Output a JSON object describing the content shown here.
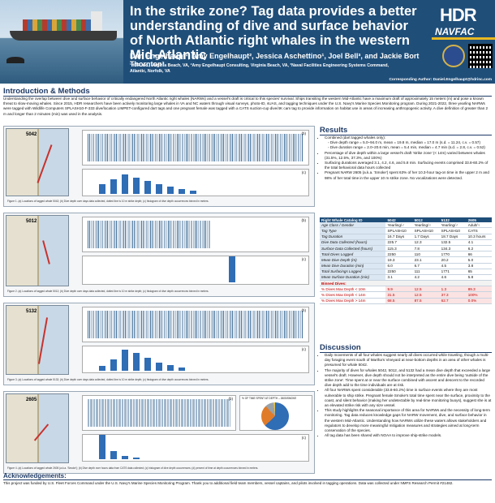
{
  "header": {
    "title": "In the strike zone? Tag data provides a better understanding of dive and surface behavior of North Atlantic right whales in the western Mid-Atlantic",
    "authors": "Dan Engelhaupt¹, Amy Engelhaupt², Jessica Aschettino¹, Joel Bell³, and Jackie Bort Thornton³",
    "affiliations": "¹HDR Inc., Virginia Beach, VA, ²Amy Engelhaupt Consulting, Virginia Beach, VA, ³Naval Facilities Engineering Systems Command, Atlantic, Norfolk, VA",
    "contact": "Corresponding Author: Daniel.Engelhaupt@hdrinc.com",
    "logo_hdr": "HDR",
    "logo_navfac": "NAVFAC"
  },
  "intro": {
    "heading": "Introduction & Methods",
    "text": "Understanding the overlap between dive and surface behavior of critically endangered North Atlantic right whales (NARWs) and a vessel's draft is critical to this species' survival. Ships transiting the western Mid-Atlantic have a maximum draft of approximately 15 meters (m) and pose a known threat to slow-moving whales. Since 2015, HDR researchers have been actively monitoring large whales in VA and NC waters through visual surveys, photo-ID, sUAS, and tagging techniques under the U.S. Navy's Marine Species Monitoring program. During 2021-2022, three yearling NARWs were tagged with Wildlife Computers SPLASH10-F-333 dive/location LIMPET-configured dart tags and one pregnant female was tagged with a CATS suction-cup dive/4K cam tag to provide information on habitat use in areas of increasing anthropogenic activity. A dive definition of greater than 2 m and longer than 2 minutes (min) was used in the analysis."
  },
  "figures": [
    {
      "whale_id": "5042",
      "caption": "Figure 1. (a) Locations of tagged whale 5042; (b) Dive depth over days data collected, dotted line is 10 m strike depth; (c) histogram of dive depth occurrences binned in meters."
    },
    {
      "whale_id": "5012",
      "caption": "Figure 2. (a) Locations of tagged whale 5012; (b) Dive depth over days data collected, dotted line is 10 m strike depth; (c) histogram of dive depth occurrences binned in meters."
    },
    {
      "whale_id": "5132",
      "caption": "Figure 3. (a) Locations of tagged whale 5132; (b) Dive depth over days data collected, dotted line is 10 m strike depth; (c) histogram of dive depth occurrences binned in meters."
    },
    {
      "whale_id": "2605",
      "caption": "Figure 4. (a) Locations of tagged whale 2605 (a.k.a. 'Smoke'); (b) Dive depth over hours data from CATS data collected; (c) histogram of dive depth occurrences; (d) percent of time at depth occurrences binned in meters."
    }
  ],
  "pie_title": "% OF TIME SPENT AT DEPTH – 2605/SMOKE",
  "results": {
    "heading": "Results",
    "items": [
      "Combined (dart tagged whales only):",
      "◦ Dive depth range = 5.0–94.0 m, mean = 19.8 m, median = 17.0 m (s.d. = 11.24, c.v. = 0.57)",
      "◦ Dive duration range = 2.0–20.6 min, mean = 5.4 min, median = 4.7 min (s.d. = 2.8, c.v. = 0.52)",
      "Percentage of dive depth within a large vessel's draft 'strike zone' (< 14m) varied between whales (31.5%, 12.5%, 37.3%, and 100%)",
      "Surfacing durations averaged 3.1, 4.2, 4.6, and 5.8 min. Surfacing events comprised 33.8-60.2% of the total behavioral data hours collected",
      "Pregnant NARW 2605 (a.k.a. 'Smoke') spent 63% of her 10.3-hour tag-on time in the upper 2 m and 98% of her total time in the upper 10 m strike zone. No vocalizations were detected."
    ]
  },
  "table": {
    "headers": [
      "Right Whale Catalog ID",
      "5042",
      "5012",
      "5132",
      "2605"
    ],
    "rows": [
      [
        "Age Class / Gender",
        "Yearling/♂",
        "Yearling/♀",
        "Yearling/♂",
        "Adult/♀"
      ],
      [
        "Tag Type",
        "SPLASH10",
        "SPLASH10",
        "SPLASH10",
        "CATS"
      ],
      [
        "Tag Duration",
        "16.7 Days",
        "1.7 Days",
        "18.7 Days",
        "10.3 hours"
      ],
      [
        "Dive Data Collected (hours)",
        "225.7",
        "12.3",
        "132.5",
        "4.1"
      ],
      [
        "Surface Data Collected (hours)",
        "115.3",
        "7.8",
        "134.3",
        "6.2"
      ],
      [
        "Total Dives Logged",
        "2250",
        "110",
        "1770",
        "66"
      ],
      [
        "Mean Dive Depth (m)",
        "19.3",
        "23.1",
        "20.2",
        "5.0"
      ],
      [
        "Mean Dive Duration (min)",
        "6.0",
        "6.7",
        "4.5",
        "3.8"
      ],
      [
        "Total Surfacings Logged",
        "2250",
        "111",
        "1771",
        "65"
      ],
      [
        "Mean Surface Duration (min)",
        "3.1",
        "4.2",
        "4.6",
        "5.8"
      ]
    ],
    "binned_label": "Binned Dives:",
    "binned_rows": [
      [
        "% Dives Max Depth < 10m",
        "9.9",
        "12.5",
        "1.3",
        "89.3"
      ],
      [
        "% Dives Max Depth < 14m",
        "31.5",
        "12.5",
        "37.3",
        "100%"
      ],
      [
        "% Dives Max Depth > 14m",
        "68.5",
        "87.5",
        "62.7",
        "0.0%"
      ]
    ]
  },
  "discussion": {
    "heading": "Discussion",
    "items": [
      "Daily movements of all four whales suggest nearly all dives occurred while traveling, though a multi-day foraging event south of Martha's Vineyard at near-bottom depths in an area of other whales is presumed for whale 5042.",
      "The majority of dives for whales 5042, 5012, and 5132 had a mean dive depth that exceeded a large vessel's draft. However, dive depth should not be interpreted as the entire dive being 'outside of the strike zone'. Time spent at or near the surface combined with ascent and descent to the recorded dive depth add to the time individuals are at risk.",
      "All four NARWs spent considerable (33.8-60.2%) time in surface events where they are most vulnerable to ship strike. Pregnant female Smoke's total time spent near the surface, proximity to the coast, and silent behavior (making her undetectable by real-time monitoring buoys), suggest she is at an elevated strike risk with any size vessel.",
      "This study highlights the seasonal importance of this area for NARWs and the necessity of long-term monitoring. Tag data reduces knowledge gaps for NARW movement, dive, and surface behavior in the western Mid-Atlantic. Understanding how NARWs utilize these waters allows stakeholders and regulators to develop more meaningful mitigation measures and strategies aimed at long-term conservation of the species.",
      "All tag data has been shared with NOAA to improve ship-strike models."
    ]
  },
  "acks": {
    "heading": "Acknowledgements:",
    "text": "This project was funded by U.S. Fleet Forces Command under the U.S. Navy's Marine Species Monitoring Program. Thank you to additional field team members, vessel captains, and pilots involved in tagging operations. Data was collected under NMFS Research Permit #21482."
  },
  "colors": {
    "primary": "#1f4e79",
    "accent": "#c00000",
    "bar": "#2f6db5"
  }
}
